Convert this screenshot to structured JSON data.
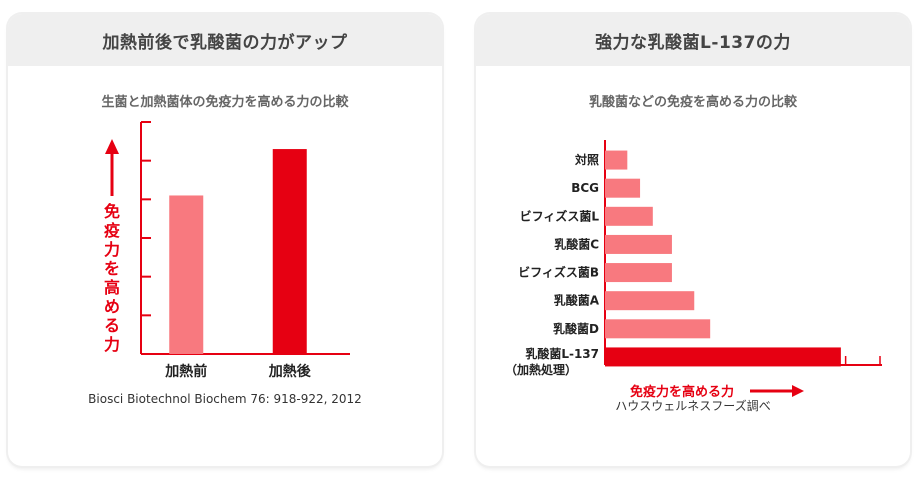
{
  "colors": {
    "accent": "#e60012",
    "light_bar": "#f8797f",
    "dark_bar": "#e60012",
    "header_bg": "#efefef"
  },
  "panel_left": {
    "header": "加熱前後で乳酸菌の力がアップ",
    "subtitle": "生菌と加熱菌体の免疫力を高める力の比較",
    "ylabel_chars": [
      "免",
      "疫",
      "力",
      "を",
      "高",
      "め",
      "る",
      "力"
    ],
    "source": "Biosci Biotechnol Biochem 76: 918-922, 2012"
  },
  "panel_right": {
    "header": "強力な乳酸菌L-137の力",
    "subtitle": "乳酸菌などの免疫を高める力の比較",
    "xlabel": "免疫力を高める力",
    "source": "ハウスウェルネスフーズ調べ"
  },
  "chart_data": [
    {
      "type": "bar",
      "categories": [
        "加熱前",
        "加熱後"
      ],
      "values": [
        4.1,
        5.3
      ],
      "title": "生菌と加熱菌体の免疫力を高める力の比較",
      "xlabel": "",
      "ylabel": "免疫力を高める力",
      "ylim": [
        0,
        6
      ],
      "yticks": 6,
      "orientation": "vertical",
      "grid": false
    },
    {
      "type": "bar",
      "categories": [
        "対照",
        "BCG",
        "ビフィズス菌L",
        "乳酸菌C",
        "ビフィズス菌B",
        "乳酸菌A",
        "乳酸菌D",
        "乳酸菌L-137"
      ],
      "category_sublabels": {
        "乳酸菌L-137": "（加熱処理）"
      },
      "values": [
        0.7,
        1.1,
        1.5,
        2.1,
        2.1,
        2.8,
        3.3,
        7.4
      ],
      "highlight": "乳酸菌L-137",
      "title": "乳酸菌などの免疫を高める力の比較",
      "xlabel": "免疫力を高める力",
      "ylabel": "",
      "xlim": [
        0,
        8
      ],
      "xticks": 8,
      "orientation": "horizontal",
      "grid": false
    }
  ]
}
